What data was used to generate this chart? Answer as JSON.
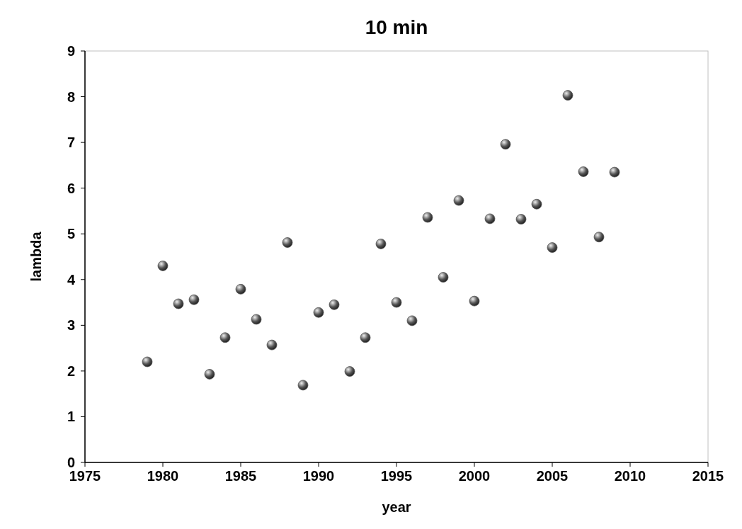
{
  "chart_data": {
    "type": "scatter",
    "title": "10 min",
    "xlabel": "year",
    "ylabel": "lambda",
    "x": [
      1979,
      1980,
      1981,
      1982,
      1983,
      1984,
      1985,
      1986,
      1987,
      1988,
      1989,
      1990,
      1991,
      1992,
      1993,
      1994,
      1995,
      1996,
      1997,
      1998,
      1999,
      2000,
      2001,
      2002,
      2003,
      2004,
      2005,
      2006,
      2007,
      2008,
      2009
    ],
    "series": [
      {
        "color": "#555555",
        "values": [
          2.2,
          4.3,
          3.47,
          3.56,
          1.93,
          2.73,
          3.79,
          3.13,
          2.57,
          4.81,
          1.69,
          3.28,
          3.45,
          1.99,
          2.73,
          4.78,
          3.5,
          3.1,
          5.36,
          4.05,
          5.73,
          3.53,
          5.33,
          6.96,
          5.32,
          5.65,
          4.7,
          8.03,
          6.36,
          4.93,
          6.35
        ]
      }
    ],
    "xlim": [
      1975,
      2015
    ],
    "xticks": [
      1975,
      1980,
      1985,
      1990,
      1995,
      2000,
      2005,
      2010,
      2015
    ],
    "ylim": [
      0,
      9
    ],
    "yticks": [
      0,
      1,
      2,
      3,
      4,
      5,
      6,
      7,
      8,
      9
    ],
    "grid": false,
    "marker": "circle"
  }
}
